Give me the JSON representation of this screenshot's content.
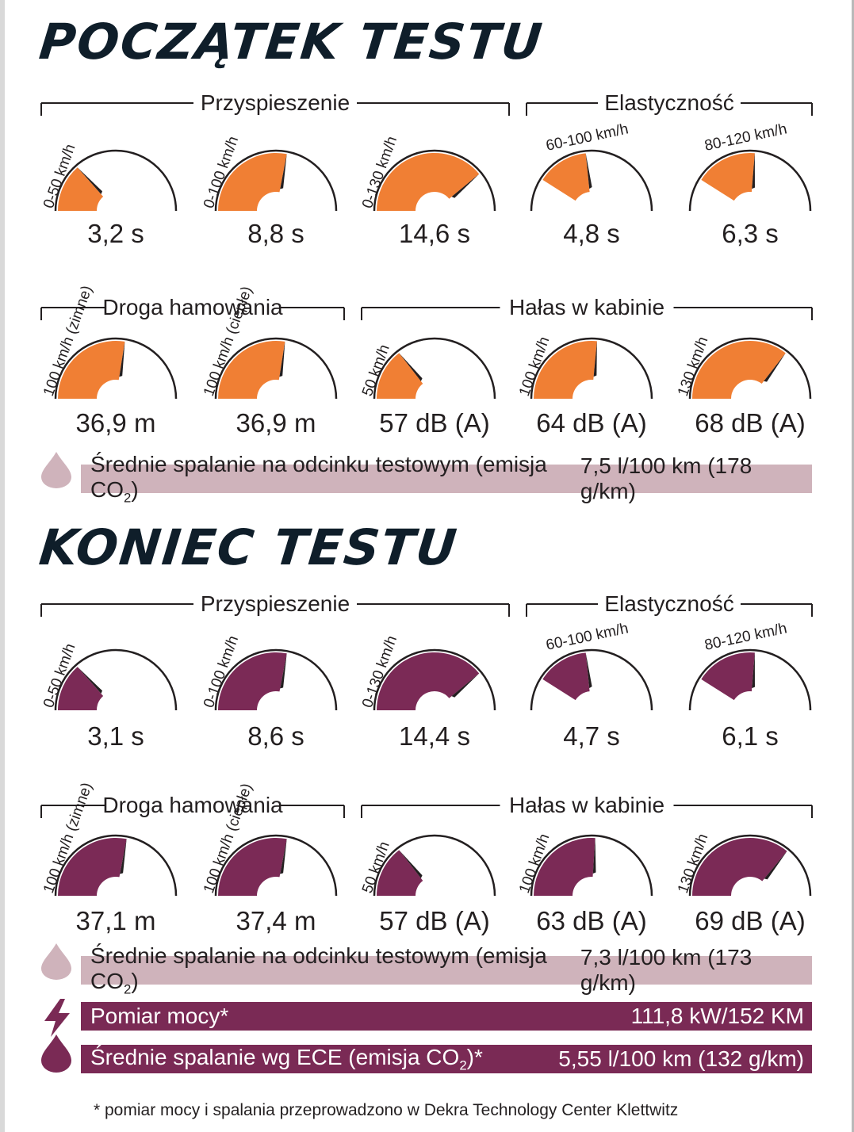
{
  "colors": {
    "start": "#f07f34",
    "end": "#7b2a56",
    "avg_bar": "#cfb3bb",
    "dark_bar": "#7a2a55",
    "needle": "#231f20"
  },
  "sections": [
    {
      "title": "POCZĄTEK TESTU",
      "group_headers": {
        "acceleration": "Przyspieszenie",
        "elasticity": "Elastyczność",
        "braking": "Droga hamowania",
        "noise": "Hałas w kabinie"
      },
      "gauges": [
        {
          "label": "0-50 km/h",
          "value": "3,2 s",
          "level": 0.27
        },
        {
          "label": "0-100 km/h",
          "value": "8,8 s",
          "level": 0.56
        },
        {
          "label": "0-130 km/h",
          "value": "14,6 s",
          "level": 0.78
        },
        {
          "label": "60-100 km/h",
          "value": "4,8 s",
          "level": 0.45
        },
        {
          "label": "80-120 km/h",
          "value": "6,3 s",
          "level": 0.54
        },
        {
          "label": "100 km/h (zimne)",
          "value": "36,9 m",
          "level": 0.55
        },
        {
          "label": "100 km/h (ciepłe)",
          "value": "36,9 m",
          "level": 0.55
        },
        {
          "label": "50 km/h",
          "value": "57 dB (A)",
          "level": 0.29
        },
        {
          "label": "100 km/h",
          "value": "64 dB (A)",
          "level": 0.53
        },
        {
          "label": "130 km/h",
          "value": "68 dB (A)",
          "level": 0.71
        }
      ],
      "avg_bar": {
        "label_pre": "Średnie spalanie na odcinku testowym (emisja CO",
        "label_sub": "2",
        "label_post": ")",
        "value": "7,5 l/100 km (178 g/km)"
      }
    },
    {
      "title": "KONIEC TESTU",
      "group_headers": {
        "acceleration": "Przyspieszenie",
        "elasticity": "Elastyczność",
        "braking": "Droga hamowania",
        "noise": "Hałas w kabinie"
      },
      "gauges": [
        {
          "label": "0-50 km/h",
          "value": "3,1 s",
          "level": 0.27
        },
        {
          "label": "0-100 km/h",
          "value": "8,6 s",
          "level": 0.56
        },
        {
          "label": "0-130 km/h",
          "value": "14,4 s",
          "level": 0.78
        },
        {
          "label": "60-100 km/h",
          "value": "4,7 s",
          "level": 0.45
        },
        {
          "label": "80-120 km/h",
          "value": "6,1 s",
          "level": 0.54
        },
        {
          "label": "100 km/h (zimne)",
          "value": "37,1 m",
          "level": 0.56
        },
        {
          "label": "100 km/h (ciepłe)",
          "value": "37,4 m",
          "level": 0.56
        },
        {
          "label": "50 km/h",
          "value": "57 dB (A)",
          "level": 0.29
        },
        {
          "label": "100 km/h",
          "value": "63 dB (A)",
          "level": 0.52
        },
        {
          "label": "130 km/h",
          "value": "69 dB (A)",
          "level": 0.72
        }
      ],
      "avg_bar": {
        "label_pre": "Średnie spalanie na odcinku testowym (emisja CO",
        "label_sub": "2",
        "label_post": ")",
        "value": "7,3 l/100 km (173 g/km)"
      }
    }
  ],
  "power_bar": {
    "label": "Pomiar mocy*",
    "value": "111,8 kW/152 KM",
    "icon": "lightning-icon"
  },
  "ece_bar": {
    "label_pre": "Średnie spalanie wg ECE (emisja CO",
    "label_sub": "2",
    "label_post": ")*",
    "value": "5,55 l/100 km (132 g/km)",
    "icon": "fuel-drop-icon"
  },
  "footnote": "* pomiar mocy i spalania przeprowadzono w Dekra Technology Center Klettwitz",
  "chart_data": [
    {
      "type": "gauge",
      "title": "POCZĄTEK TESTU",
      "groups": [
        "Przyspieszenie",
        "Elastyczność",
        "Droga hamowania",
        "Hałas w kabinie"
      ],
      "series": [
        {
          "name": "Przyspieszenie",
          "categories": [
            "0-50 km/h",
            "0-100 km/h",
            "0-130 km/h"
          ],
          "values": [
            3.2,
            8.8,
            14.6
          ],
          "unit": "s"
        },
        {
          "name": "Elastyczność",
          "categories": [
            "60-100 km/h",
            "80-120 km/h"
          ],
          "values": [
            4.8,
            6.3
          ],
          "unit": "s"
        },
        {
          "name": "Droga hamowania",
          "categories": [
            "100 km/h (zimne)",
            "100 km/h (ciepłe)"
          ],
          "values": [
            36.9,
            36.9
          ],
          "unit": "m"
        },
        {
          "name": "Hałas w kabinie",
          "categories": [
            "50 km/h",
            "100 km/h",
            "130 km/h"
          ],
          "values": [
            57,
            64,
            68
          ],
          "unit": "dB (A)"
        }
      ]
    },
    {
      "type": "gauge",
      "title": "KONIEC TESTU",
      "groups": [
        "Przyspieszenie",
        "Elastyczność",
        "Droga hamowania",
        "Hałas w kabinie"
      ],
      "series": [
        {
          "name": "Przyspieszenie",
          "categories": [
            "0-50 km/h",
            "0-100 km/h",
            "0-130 km/h"
          ],
          "values": [
            3.1,
            8.6,
            14.4
          ],
          "unit": "s"
        },
        {
          "name": "Elastyczność",
          "categories": [
            "60-100 km/h",
            "80-120 km/h"
          ],
          "values": [
            4.7,
            6.1
          ],
          "unit": "s"
        },
        {
          "name": "Droga hamowania",
          "categories": [
            "100 km/h (zimne)",
            "100 km/h (ciepłe)"
          ],
          "values": [
            37.1,
            37.4
          ],
          "unit": "m"
        },
        {
          "name": "Hałas w kabinie",
          "categories": [
            "50 km/h",
            "100 km/h",
            "130 km/h"
          ],
          "values": [
            57,
            63,
            69
          ],
          "unit": "dB (A)"
        }
      ]
    }
  ]
}
